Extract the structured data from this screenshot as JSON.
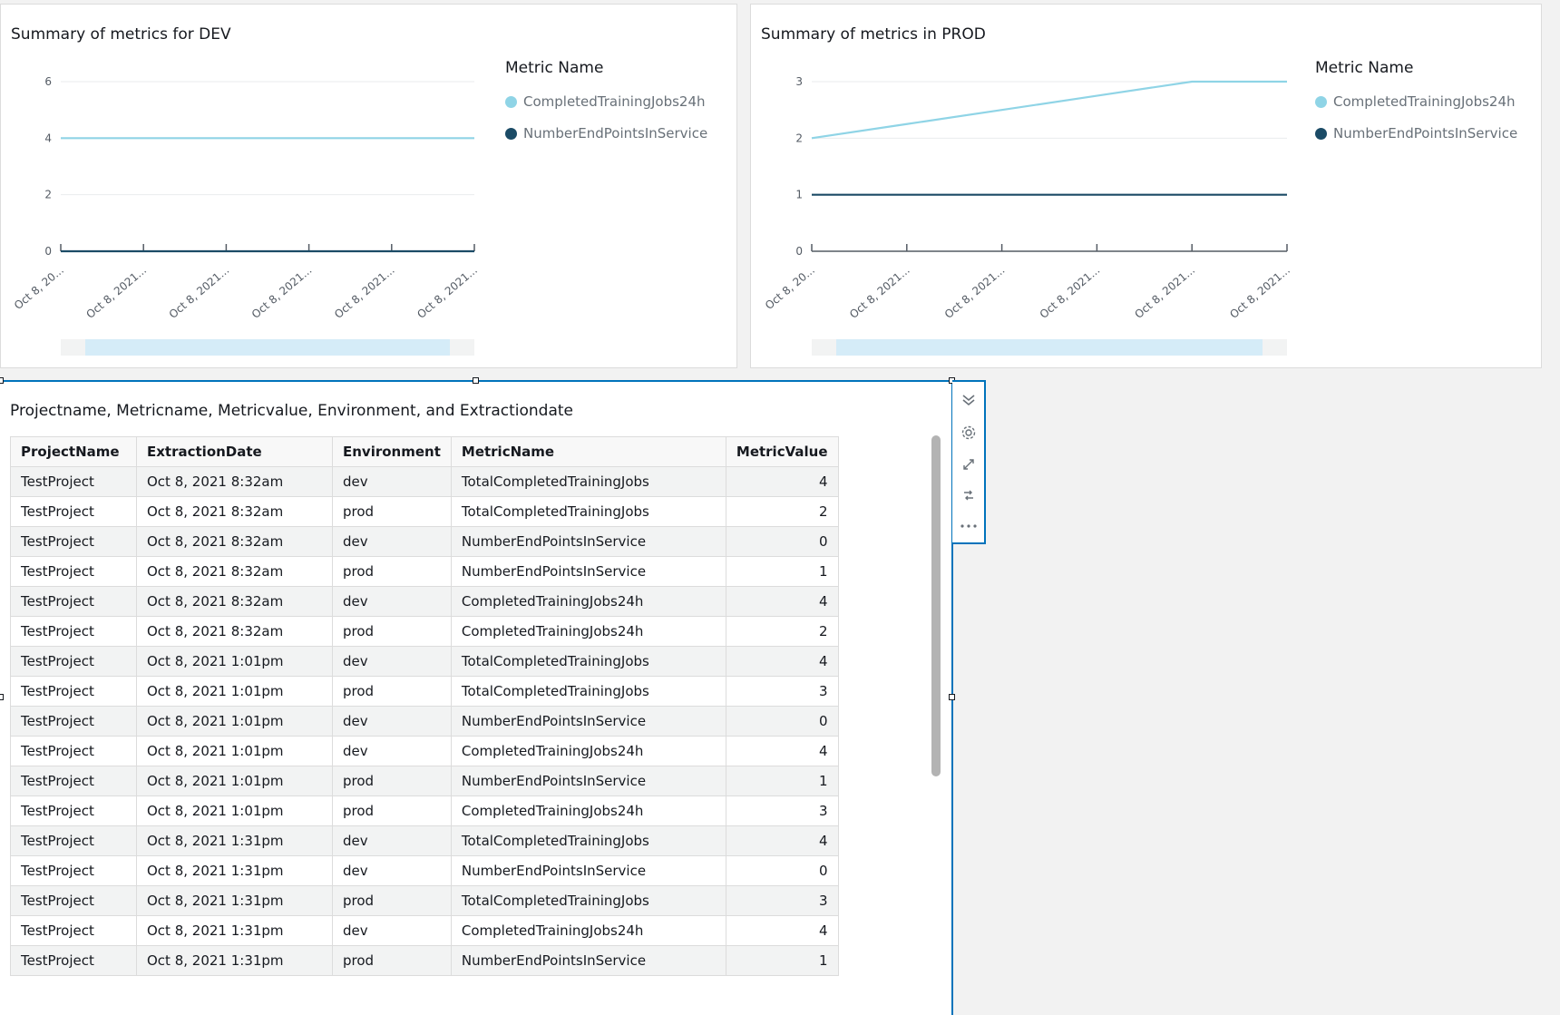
{
  "chart_data": [
    {
      "type": "line",
      "title": "Summary of metrics for DEV",
      "x": [
        "Oct 8, 20...",
        "Oct 8, 2021...",
        "Oct 8, 2021...",
        "Oct 8, 2021...",
        "Oct 8, 2021...",
        "Oct 8, 2021..."
      ],
      "yticks": [
        "0",
        "2",
        "4",
        "6"
      ],
      "ylim": [
        0,
        6
      ],
      "grid": true,
      "legend_title": "Metric Name",
      "legend_position": "right",
      "series": [
        {
          "name": "CompletedTrainingJobs24h",
          "color": "#8fd4e6",
          "values": [
            4,
            4,
            4,
            4,
            4,
            4
          ]
        },
        {
          "name": "NumberEndPointsInService",
          "color": "#1b4b66",
          "values": [
            0,
            0,
            0,
            0,
            0,
            0
          ]
        }
      ]
    },
    {
      "type": "line",
      "title": "Summary of metrics in PROD",
      "x": [
        "Oct 8, 20...",
        "Oct 8, 2021...",
        "Oct 8, 2021...",
        "Oct 8, 2021...",
        "Oct 8, 2021...",
        "Oct 8, 2021..."
      ],
      "yticks": [
        "0",
        "1",
        "2",
        "3"
      ],
      "ylim": [
        0,
        3
      ],
      "grid": true,
      "legend_title": "Metric Name",
      "legend_position": "right",
      "series": [
        {
          "name": "CompletedTrainingJobs24h",
          "color": "#8fd4e6",
          "values": [
            2,
            2.25,
            2.5,
            2.75,
            3,
            3
          ]
        },
        {
          "name": "NumberEndPointsInService",
          "color": "#1b4b66",
          "values": [
            1,
            1,
            1,
            1,
            1,
            1
          ]
        }
      ]
    }
  ],
  "table": {
    "title": "Projectname, Metricname, Metricvalue, Environment, and Extractiondate",
    "columns": [
      "ProjectName",
      "ExtractionDate",
      "Environment",
      "MetricName",
      "MetricValue"
    ],
    "rows": [
      [
        "TestProject",
        "Oct 8, 2021 8:32am",
        "dev",
        "TotalCompletedTrainingJobs",
        "4"
      ],
      [
        "TestProject",
        "Oct 8, 2021 8:32am",
        "prod",
        "TotalCompletedTrainingJobs",
        "2"
      ],
      [
        "TestProject",
        "Oct 8, 2021 8:32am",
        "dev",
        "NumberEndPointsInService",
        "0"
      ],
      [
        "TestProject",
        "Oct 8, 2021 8:32am",
        "prod",
        "NumberEndPointsInService",
        "1"
      ],
      [
        "TestProject",
        "Oct 8, 2021 8:32am",
        "dev",
        "CompletedTrainingJobs24h",
        "4"
      ],
      [
        "TestProject",
        "Oct 8, 2021 8:32am",
        "prod",
        "CompletedTrainingJobs24h",
        "2"
      ],
      [
        "TestProject",
        "Oct 8, 2021 1:01pm",
        "dev",
        "TotalCompletedTrainingJobs",
        "4"
      ],
      [
        "TestProject",
        "Oct 8, 2021 1:01pm",
        "prod",
        "TotalCompletedTrainingJobs",
        "3"
      ],
      [
        "TestProject",
        "Oct 8, 2021 1:01pm",
        "dev",
        "NumberEndPointsInService",
        "0"
      ],
      [
        "TestProject",
        "Oct 8, 2021 1:01pm",
        "dev",
        "CompletedTrainingJobs24h",
        "4"
      ],
      [
        "TestProject",
        "Oct 8, 2021 1:01pm",
        "prod",
        "NumberEndPointsInService",
        "1"
      ],
      [
        "TestProject",
        "Oct 8, 2021 1:01pm",
        "prod",
        "CompletedTrainingJobs24h",
        "3"
      ],
      [
        "TestProject",
        "Oct 8, 2021 1:31pm",
        "dev",
        "TotalCompletedTrainingJobs",
        "4"
      ],
      [
        "TestProject",
        "Oct 8, 2021 1:31pm",
        "dev",
        "NumberEndPointsInService",
        "0"
      ],
      [
        "TestProject",
        "Oct 8, 2021 1:31pm",
        "prod",
        "TotalCompletedTrainingJobs",
        "3"
      ],
      [
        "TestProject",
        "Oct 8, 2021 1:31pm",
        "dev",
        "CompletedTrainingJobs24h",
        "4"
      ],
      [
        "TestProject",
        "Oct 8, 2021 1:31pm",
        "prod",
        "NumberEndPointsInService",
        "1"
      ]
    ]
  },
  "toolbar": {
    "icons": [
      "chevron-double-down-icon",
      "gear-icon",
      "expand-icon",
      "swap-icon",
      "more-icon"
    ]
  }
}
